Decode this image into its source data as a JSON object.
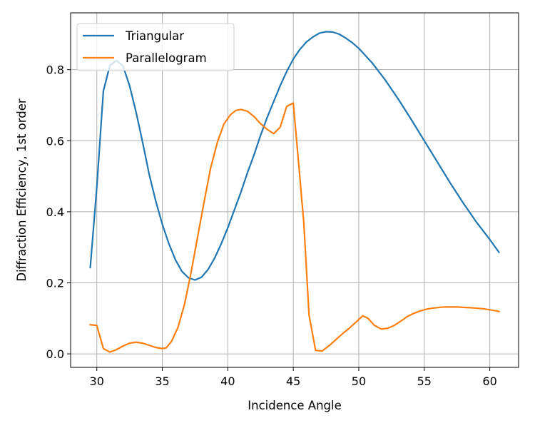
{
  "chart_data": {
    "type": "line",
    "xlabel": "Incidence Angle",
    "ylabel": "Diffraction Efficiency, 1st order",
    "xlim": [
      28.0,
      62.2
    ],
    "ylim": [
      -0.038,
      0.96
    ],
    "xticks": [
      30,
      35,
      40,
      45,
      50,
      55,
      60
    ],
    "yticks": [
      0.0,
      0.2,
      0.4,
      0.6,
      0.8
    ],
    "grid": true,
    "legend_position": "top-left",
    "series": [
      {
        "name": "Triangular",
        "color": "#1f77b4",
        "points": [
          [
            29.5,
            0.243
          ],
          [
            30.0,
            0.47
          ],
          [
            30.5,
            0.74
          ],
          [
            31.0,
            0.812
          ],
          [
            31.5,
            0.826
          ],
          [
            32.0,
            0.81
          ],
          [
            32.5,
            0.755
          ],
          [
            33.0,
            0.68
          ],
          [
            33.5,
            0.595
          ],
          [
            34.0,
            0.505
          ],
          [
            34.5,
            0.43
          ],
          [
            35.0,
            0.365
          ],
          [
            35.5,
            0.31
          ],
          [
            36.0,
            0.265
          ],
          [
            36.5,
            0.232
          ],
          [
            37.0,
            0.214
          ],
          [
            37.5,
            0.208
          ],
          [
            38.0,
            0.216
          ],
          [
            38.5,
            0.238
          ],
          [
            39.0,
            0.27
          ],
          [
            39.5,
            0.31
          ],
          [
            40.0,
            0.355
          ],
          [
            40.5,
            0.405
          ],
          [
            41.0,
            0.455
          ],
          [
            41.5,
            0.51
          ],
          [
            42.0,
            0.56
          ],
          [
            42.5,
            0.615
          ],
          [
            43.0,
            0.665
          ],
          [
            43.5,
            0.71
          ],
          [
            44.0,
            0.755
          ],
          [
            44.5,
            0.795
          ],
          [
            45.0,
            0.83
          ],
          [
            45.5,
            0.857
          ],
          [
            46.0,
            0.878
          ],
          [
            46.5,
            0.892
          ],
          [
            47.0,
            0.903
          ],
          [
            47.5,
            0.907
          ],
          [
            48.0,
            0.906
          ],
          [
            48.5,
            0.9
          ],
          [
            49.0,
            0.889
          ],
          [
            49.5,
            0.876
          ],
          [
            50.0,
            0.86
          ],
          [
            51.0,
            0.82
          ],
          [
            52.0,
            0.772
          ],
          [
            53.0,
            0.718
          ],
          [
            54.0,
            0.66
          ],
          [
            55.0,
            0.6
          ],
          [
            56.0,
            0.54
          ],
          [
            57.0,
            0.48
          ],
          [
            58.0,
            0.423
          ],
          [
            59.0,
            0.37
          ],
          [
            60.0,
            0.322
          ],
          [
            60.7,
            0.286
          ]
        ]
      },
      {
        "name": "Parallelogram",
        "color": "#ff7f0e",
        "points": [
          [
            29.5,
            0.082
          ],
          [
            30.0,
            0.08
          ],
          [
            30.5,
            0.015
          ],
          [
            31.0,
            0.005
          ],
          [
            31.5,
            0.012
          ],
          [
            32.0,
            0.022
          ],
          [
            32.5,
            0.03
          ],
          [
            33.0,
            0.033
          ],
          [
            33.5,
            0.03
          ],
          [
            34.0,
            0.024
          ],
          [
            34.5,
            0.018
          ],
          [
            35.0,
            0.015
          ],
          [
            35.3,
            0.017
          ],
          [
            35.7,
            0.035
          ],
          [
            36.2,
            0.075
          ],
          [
            36.7,
            0.14
          ],
          [
            37.2,
            0.23
          ],
          [
            37.7,
            0.33
          ],
          [
            38.2,
            0.43
          ],
          [
            38.7,
            0.525
          ],
          [
            39.2,
            0.595
          ],
          [
            39.7,
            0.647
          ],
          [
            40.2,
            0.673
          ],
          [
            40.6,
            0.685
          ],
          [
            41.0,
            0.688
          ],
          [
            41.5,
            0.683
          ],
          [
            42.0,
            0.668
          ],
          [
            42.5,
            0.648
          ],
          [
            43.0,
            0.632
          ],
          [
            43.5,
            0.62
          ],
          [
            44.0,
            0.638
          ],
          [
            44.5,
            0.697
          ],
          [
            45.0,
            0.706
          ],
          [
            45.4,
            0.54
          ],
          [
            45.8,
            0.37
          ],
          [
            46.2,
            0.11
          ],
          [
            46.7,
            0.01
          ],
          [
            47.2,
            0.008
          ],
          [
            47.8,
            0.025
          ],
          [
            48.3,
            0.042
          ],
          [
            48.8,
            0.058
          ],
          [
            49.3,
            0.073
          ],
          [
            49.8,
            0.09
          ],
          [
            50.3,
            0.107
          ],
          [
            50.7,
            0.1
          ],
          [
            51.2,
            0.08
          ],
          [
            51.7,
            0.07
          ],
          [
            52.2,
            0.072
          ],
          [
            52.7,
            0.08
          ],
          [
            53.2,
            0.092
          ],
          [
            53.7,
            0.105
          ],
          [
            54.2,
            0.114
          ],
          [
            54.7,
            0.121
          ],
          [
            55.2,
            0.126
          ],
          [
            55.7,
            0.129
          ],
          [
            56.5,
            0.132
          ],
          [
            57.5,
            0.132
          ],
          [
            58.5,
            0.13
          ],
          [
            59.5,
            0.127
          ],
          [
            60.5,
            0.121
          ],
          [
            60.7,
            0.119
          ]
        ]
      }
    ]
  }
}
